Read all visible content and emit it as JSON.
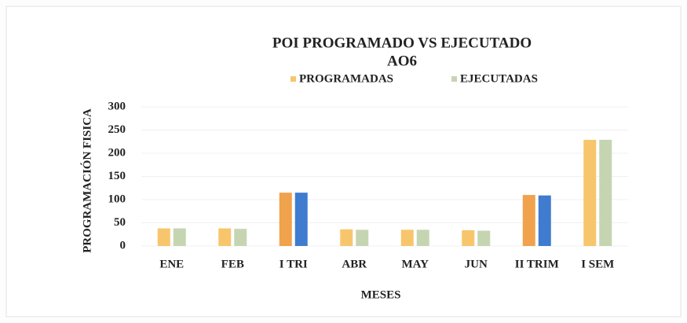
{
  "chart_data": {
    "type": "bar",
    "title": "POI PROGRAMADO VS EJECUTADO",
    "subtitle": "AO6",
    "x_label": "MESES",
    "y_label": "PROGRAMACIÓN FISICA",
    "categories": [
      "ENE",
      "FEB",
      "I TRI",
      "ABR",
      "MAY",
      "JUN",
      "II TRIM",
      "I SEM"
    ],
    "series": [
      {
        "name": "PROGRAMADAS",
        "color": "#f7c66c",
        "colors": [
          "#f7c66c",
          "#f7c66c",
          "#f0a24c",
          "#f7c66c",
          "#f7c66c",
          "#f7c66c",
          "#f0a24c",
          "#f7c66c"
        ],
        "values": [
          38,
          38,
          115,
          36,
          35,
          34,
          110,
          229
        ]
      },
      {
        "name": "EJECUTADAS",
        "color": "#c6d5b1",
        "colors": [
          "#c6d5b1",
          "#c6d5b1",
          "#3f7ccf",
          "#c6d5b1",
          "#c6d5b1",
          "#c6d5b1",
          "#3f7ccf",
          "#c6d5b1"
        ],
        "values": [
          38,
          37,
          115,
          35,
          35,
          33,
          109,
          229
        ]
      }
    ],
    "ylim": [
      0,
      300
    ],
    "yticks": [
      0,
      50,
      100,
      150,
      200,
      250,
      300
    ],
    "grid": true,
    "legend": "top"
  }
}
